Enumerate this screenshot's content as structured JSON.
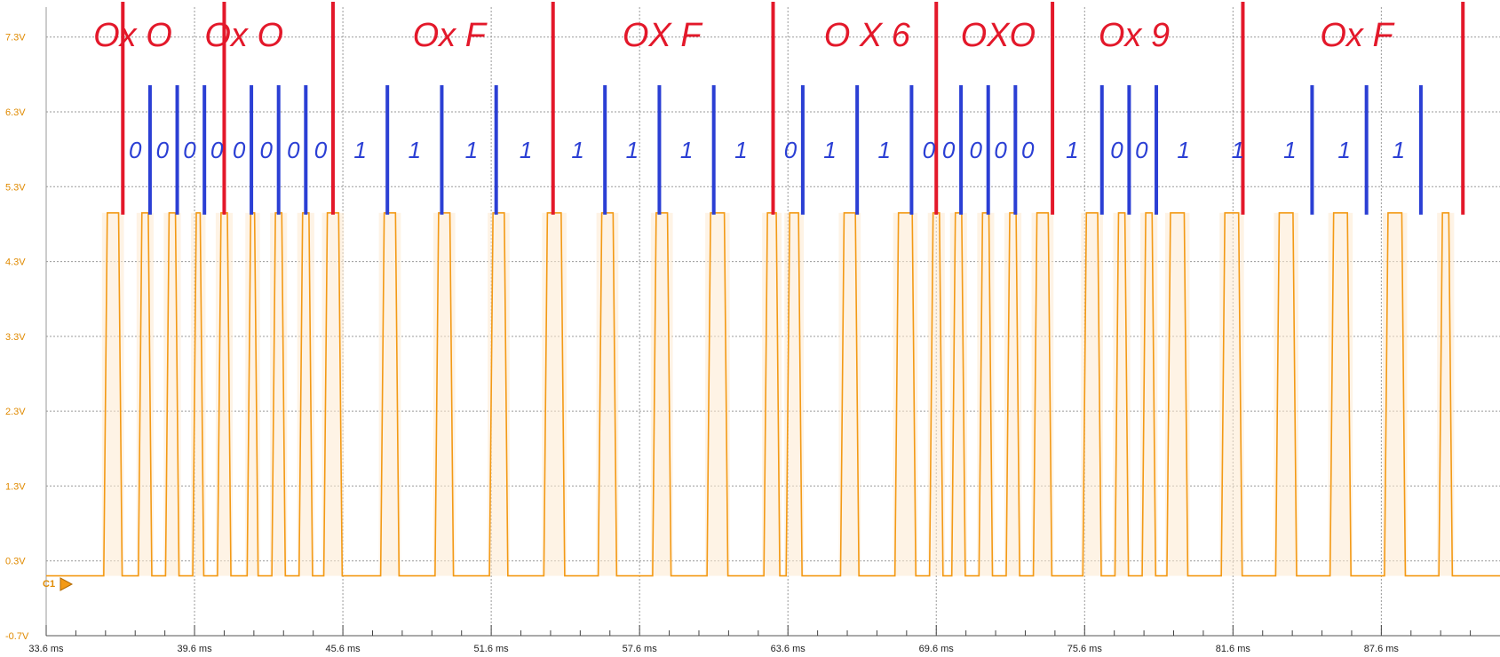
{
  "chart_data": {
    "type": "line",
    "title": "",
    "xlabel": "",
    "ylabel": "",
    "x_unit": "ms",
    "y_unit": "V",
    "xlim": [
      33.6,
      92.4
    ],
    "ylim": [
      -0.7,
      7.7
    ],
    "grid": true,
    "y_ticks": [
      "7.3V",
      "6.3V",
      "5.3V",
      "4.3V",
      "3.3V",
      "2.3V",
      "1.3V",
      "0.3V",
      "-0.7V"
    ],
    "y_tick_values": [
      7.3,
      6.3,
      5.3,
      4.3,
      3.3,
      2.3,
      1.3,
      0.3,
      -0.7
    ],
    "x_ticks": [
      "33.6 ms",
      "39.6 ms",
      "45.6 ms",
      "51.6 ms",
      "57.6 ms",
      "63.6 ms",
      "69.6 ms",
      "75.6 ms",
      "81.6 ms",
      "87.6 ms"
    ],
    "x_tick_values": [
      33.6,
      39.6,
      45.6,
      51.6,
      57.6,
      63.6,
      69.6,
      75.6,
      81.6,
      87.6
    ],
    "channel_label": "C1",
    "series": [
      {
        "color": "#f39a16",
        "low_v": 0.1,
        "high_v": 4.95,
        "pulses_ms": [
          [
            36.0,
            36.6
          ],
          [
            37.4,
            37.8
          ],
          [
            38.5,
            38.9
          ],
          [
            39.6,
            39.9
          ],
          [
            40.6,
            41.0
          ],
          [
            41.8,
            42.1
          ],
          [
            42.8,
            43.2
          ],
          [
            43.9,
            44.3
          ],
          [
            44.9,
            45.5
          ],
          [
            47.2,
            47.8
          ],
          [
            49.4,
            50.0
          ],
          [
            51.6,
            52.2
          ],
          [
            53.8,
            54.5
          ],
          [
            56.0,
            56.6
          ],
          [
            58.2,
            58.8
          ],
          [
            60.4,
            61.1
          ],
          [
            62.7,
            63.2
          ],
          [
            63.6,
            64.1
          ],
          [
            65.8,
            66.4
          ],
          [
            68.0,
            68.7
          ],
          [
            69.4,
            69.8
          ],
          [
            70.3,
            70.7
          ],
          [
            71.4,
            71.8
          ],
          [
            72.5,
            72.9
          ],
          [
            73.6,
            74.2
          ],
          [
            75.6,
            76.2
          ],
          [
            76.9,
            77.3
          ],
          [
            78.0,
            78.4
          ],
          [
            79.0,
            79.7
          ],
          [
            81.2,
            81.9
          ],
          [
            83.4,
            84.1
          ],
          [
            85.6,
            86.3
          ],
          [
            87.8,
            88.5
          ],
          [
            90.0,
            90.4
          ]
        ]
      }
    ],
    "annotations": {
      "byte_labels": [
        {
          "text": "Ox O",
          "x_ms": 37.1
        },
        {
          "text": "Ox O",
          "x_ms": 41.6
        },
        {
          "text": "Ox F",
          "x_ms": 49.9
        },
        {
          "text": "OX F",
          "x_ms": 58.5
        },
        {
          "text": "O X 6",
          "x_ms": 66.8
        },
        {
          "text": "OXO",
          "x_ms": 72.1
        },
        {
          "text": "Ox 9",
          "x_ms": 77.6
        },
        {
          "text": "Ox F",
          "x_ms": 86.6
        }
      ],
      "byte_dividers_ms": [
        36.7,
        40.8,
        45.2,
        54.1,
        63.0,
        69.6,
        74.3,
        82.0,
        90.9
      ],
      "bit_markers_ms": [
        37.8,
        38.9,
        40.0,
        41.9,
        43.0,
        44.1,
        47.4,
        49.6,
        51.8,
        56.2,
        58.4,
        60.6,
        64.2,
        66.4,
        68.6,
        70.6,
        71.7,
        72.8,
        76.3,
        77.4,
        78.5,
        84.8,
        87.0,
        89.2
      ],
      "bit_values": [
        {
          "text": "0",
          "x_ms": 37.2
        },
        {
          "text": "0",
          "x_ms": 38.3
        },
        {
          "text": "0",
          "x_ms": 39.4
        },
        {
          "text": "0",
          "x_ms": 40.5
        },
        {
          "text": "0",
          "x_ms": 41.4
        },
        {
          "text": "0",
          "x_ms": 42.5
        },
        {
          "text": "0",
          "x_ms": 43.6
        },
        {
          "text": "0",
          "x_ms": 44.7
        },
        {
          "text": "1",
          "x_ms": 46.3
        },
        {
          "text": "1",
          "x_ms": 48.5
        },
        {
          "text": "1",
          "x_ms": 50.8
        },
        {
          "text": "1",
          "x_ms": 53.0
        },
        {
          "text": "1",
          "x_ms": 55.1
        },
        {
          "text": "1",
          "x_ms": 57.3
        },
        {
          "text": "1",
          "x_ms": 59.5
        },
        {
          "text": "1",
          "x_ms": 61.7
        },
        {
          "text": "0",
          "x_ms": 63.7
        },
        {
          "text": "1",
          "x_ms": 65.3
        },
        {
          "text": "1",
          "x_ms": 67.5
        },
        {
          "text": "0",
          "x_ms": 69.3
        },
        {
          "text": "0",
          "x_ms": 70.1
        },
        {
          "text": "0",
          "x_ms": 71.2
        },
        {
          "text": "0",
          "x_ms": 72.2
        },
        {
          "text": "0",
          "x_ms": 73.3
        },
        {
          "text": "1",
          "x_ms": 75.1
        },
        {
          "text": "0",
          "x_ms": 76.9
        },
        {
          "text": "0",
          "x_ms": 77.9
        },
        {
          "text": "1",
          "x_ms": 79.6
        },
        {
          "text": "1",
          "x_ms": 81.8
        },
        {
          "text": "1",
          "x_ms": 83.9
        },
        {
          "text": "1",
          "x_ms": 86.1
        },
        {
          "text": "1",
          "x_ms": 88.3
        }
      ]
    }
  }
}
